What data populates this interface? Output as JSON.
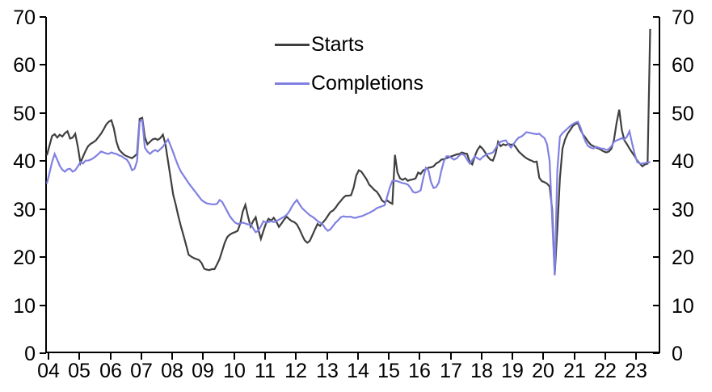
{
  "chart_data": {
    "type": "line",
    "title": "",
    "x_axis": {
      "tick_labels": [
        "04",
        "05",
        "06",
        "07",
        "08",
        "09",
        "10",
        "11",
        "12",
        "13",
        "14",
        "15",
        "16",
        "17",
        "18",
        "19",
        "20",
        "21",
        "22",
        "23"
      ],
      "start_year": 2004,
      "frequency": "monthly"
    },
    "y_axis_left": {
      "ticks": [
        0,
        10,
        20,
        30,
        40,
        50,
        60,
        70
      ],
      "range": [
        0,
        70
      ]
    },
    "y_axis_right": {
      "ticks": [
        0,
        10,
        20,
        30,
        40,
        50,
        60,
        70
      ],
      "range": [
        0,
        70
      ]
    },
    "legend": {
      "position": "top-center"
    },
    "axis_color": "#000000",
    "series": [
      {
        "name": "Starts",
        "color": "#3f3f3f",
        "values": [
          41.2,
          43.2,
          45.2,
          45.6,
          44.9,
          45.5,
          45.1,
          45.8,
          46.2,
          44.7,
          44.9,
          45.7,
          43.0,
          39.6,
          40.9,
          42.1,
          43.1,
          43.6,
          43.9,
          44.3,
          45.0,
          45.7,
          46.6,
          47.6,
          48.2,
          48.5,
          46.8,
          44.0,
          42.4,
          41.8,
          41.3,
          41.0,
          40.8,
          40.6,
          41.0,
          41.5,
          48.8,
          49.0,
          45.0,
          43.5,
          44.0,
          44.5,
          44.7,
          44.4,
          44.8,
          45.5,
          43.5,
          40.0,
          36.5,
          33.0,
          30.9,
          28.5,
          26.4,
          24.5,
          22.5,
          20.5,
          20.1,
          19.8,
          19.6,
          19.4,
          18.8,
          17.6,
          17.4,
          17.3,
          17.5,
          17.5,
          18.5,
          19.6,
          21.3,
          23.0,
          24.2,
          24.7,
          25.0,
          25.2,
          25.5,
          27.0,
          29.5,
          30.9,
          28.5,
          26.4,
          27.5,
          28.3,
          25.8,
          23.8,
          25.5,
          27.0,
          28.0,
          27.6,
          28.2,
          27.4,
          26.3,
          27.0,
          27.8,
          28.4,
          27.9,
          27.5,
          27.3,
          26.8,
          25.8,
          24.6,
          23.5,
          23.0,
          23.4,
          24.6,
          25.8,
          26.9,
          26.5,
          27.2,
          27.8,
          28.6,
          29.4,
          29.7,
          30.3,
          31.1,
          31.7,
          32.4,
          32.8,
          32.8,
          32.9,
          34.5,
          37.0,
          38.1,
          37.8,
          37.0,
          36.2,
          35.1,
          34.6,
          34.0,
          33.6,
          32.8,
          31.8,
          31.4,
          31.8,
          31.4,
          31.1,
          41.3,
          37.6,
          36.4,
          36.1,
          36.4,
          35.9,
          36.1,
          36.2,
          36.4,
          37.6,
          37.3,
          38.1,
          38.3,
          38.6,
          38.7,
          38.9,
          39.5,
          39.8,
          40.3,
          40.4,
          40.6,
          40.8,
          41.0,
          41.2,
          41.4,
          41.5,
          41.8,
          41.6,
          41.5,
          39.8,
          39.3,
          41.0,
          42.3,
          43.1,
          42.6,
          41.8,
          40.9,
          40.3,
          40.1,
          41.5,
          44.0,
          43.1,
          43.5,
          43.3,
          43.6,
          43.4,
          43.5,
          42.8,
          42.0,
          41.5,
          41.0,
          40.6,
          40.3,
          40.1,
          39.8,
          39.9,
          36.5,
          35.8,
          35.6,
          35.3,
          34.7,
          30.0,
          16.5,
          25.8,
          36.4,
          42.6,
          44.5,
          45.7,
          46.5,
          47.3,
          47.7,
          47.9,
          46.5,
          45.5,
          44.8,
          44.0,
          43.4,
          43.1,
          42.8,
          42.6,
          42.3,
          42.0,
          41.8,
          42.0,
          42.6,
          44.5,
          48.0,
          50.7,
          46.5,
          44.3,
          43.5,
          42.6,
          41.8,
          41.0,
          40.1,
          39.5,
          38.9,
          39.3,
          39.5,
          67.5
        ]
      },
      {
        "name": "Completions",
        "color": "#8080e2",
        "values": [
          35.3,
          37.5,
          39.8,
          41.5,
          40.3,
          39.0,
          38.2,
          37.8,
          38.3,
          38.4,
          37.8,
          38.1,
          38.9,
          39.8,
          39.5,
          40.1,
          40.1,
          40.3,
          40.6,
          41.0,
          41.5,
          42.0,
          41.8,
          41.6,
          41.5,
          41.8,
          41.6,
          41.5,
          41.2,
          41.0,
          40.6,
          40.3,
          39.5,
          38.1,
          38.4,
          40.0,
          48.2,
          48.5,
          42.8,
          42.0,
          41.5,
          42.0,
          42.3,
          42.0,
          42.5,
          43.0,
          43.8,
          44.5,
          43.2,
          41.8,
          40.3,
          38.9,
          37.8,
          37.0,
          36.2,
          35.4,
          34.7,
          34.0,
          33.3,
          32.6,
          31.9,
          31.5,
          31.2,
          31.1,
          31.0,
          31.0,
          31.1,
          31.9,
          31.5,
          30.5,
          29.5,
          28.5,
          27.8,
          27.2,
          26.9,
          27.0,
          27.2,
          27.0,
          26.8,
          26.9,
          26.0,
          25.2,
          25.5,
          26.4,
          27.5,
          27.2,
          27.3,
          27.5,
          27.3,
          27.5,
          27.8,
          28.1,
          28.4,
          28.8,
          29.5,
          30.5,
          31.3,
          31.9,
          31.0,
          30.2,
          29.7,
          29.2,
          28.7,
          28.4,
          28.0,
          27.5,
          27.2,
          26.8,
          26.0,
          25.5,
          25.8,
          26.5,
          27.2,
          27.7,
          28.3,
          28.5,
          28.4,
          28.4,
          28.4,
          28.2,
          28.2,
          28.4,
          28.5,
          28.7,
          29.0,
          29.2,
          29.5,
          29.8,
          30.2,
          30.4,
          30.6,
          30.8,
          32.6,
          34.5,
          35.9,
          35.9,
          35.8,
          35.6,
          35.4,
          35.3,
          35.1,
          34.5,
          33.6,
          33.4,
          33.6,
          33.9,
          36.4,
          38.6,
          38.1,
          35.6,
          34.4,
          34.6,
          35.5,
          38.0,
          40.0,
          41.0,
          41.0,
          40.6,
          40.3,
          40.6,
          41.2,
          41.5,
          41.2,
          40.3,
          39.5,
          40.2,
          41.0,
          40.6,
          40.3,
          40.8,
          41.2,
          41.5,
          41.6,
          41.8,
          42.6,
          43.5,
          44.0,
          44.2,
          44.3,
          43.5,
          42.8,
          43.5,
          44.3,
          44.9,
          45.1,
          45.5,
          46.0,
          45.9,
          45.8,
          45.7,
          45.6,
          45.7,
          45.2,
          44.8,
          43.5,
          40.0,
          28.0,
          16.2,
          38.0,
          45.1,
          45.8,
          46.3,
          46.8,
          47.3,
          47.7,
          48.0,
          48.2,
          47.0,
          45.3,
          44.0,
          43.1,
          42.8,
          42.6,
          43.0,
          42.8,
          42.6,
          42.6,
          42.3,
          42.5,
          43.1,
          44.0,
          44.3,
          44.5,
          44.8,
          44.5,
          45.1,
          46.2,
          43.7,
          41.5,
          39.8,
          39.5,
          39.5,
          39.6,
          39.7,
          39.8
        ]
      }
    ]
  }
}
